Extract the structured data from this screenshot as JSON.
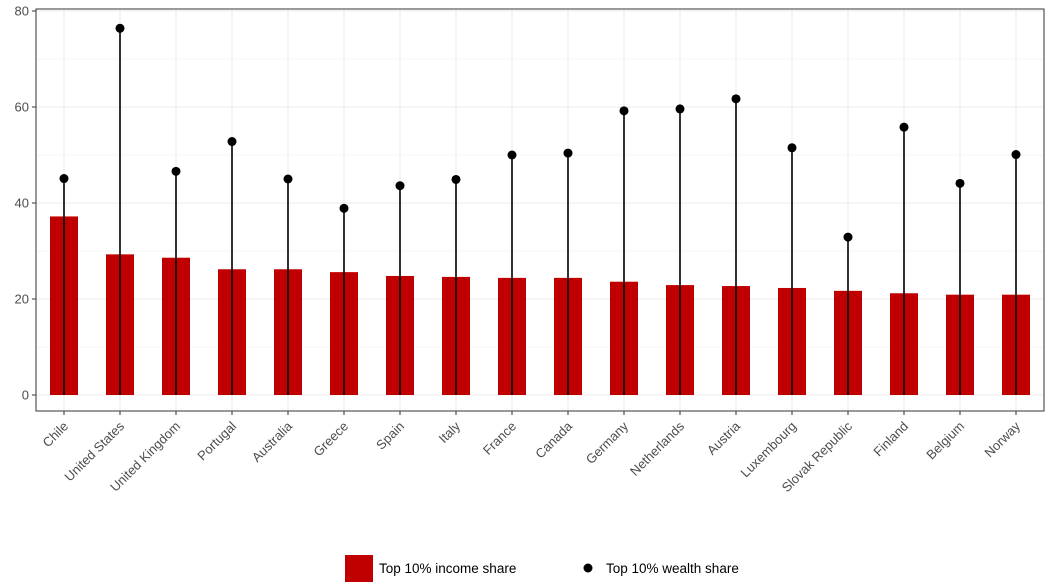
{
  "chart_data": {
    "type": "bar",
    "categories": [
      "Chile",
      "United States",
      "United Kingdom",
      "Portugal",
      "Australia",
      "Greece",
      "Spain",
      "Italy",
      "France",
      "Canada",
      "Germany",
      "Netherlands",
      "Austria",
      "Luxembourg",
      "Slovak Republic",
      "Finland",
      "Belgium",
      "Norway"
    ],
    "series": [
      {
        "name": "Top 10% income share",
        "kind": "bar",
        "color": "#c00000",
        "values": [
          37.2,
          29.3,
          28.6,
          26.2,
          26.2,
          25.6,
          24.8,
          24.6,
          24.4,
          24.4,
          23.6,
          22.9,
          22.7,
          22.3,
          21.7,
          21.2,
          20.9,
          20.9
        ]
      },
      {
        "name": "Top 10% wealth share",
        "kind": "point",
        "color": "#000000",
        "values": [
          45.1,
          76.4,
          46.6,
          52.8,
          45.0,
          38.9,
          43.6,
          44.9,
          50.0,
          50.4,
          59.2,
          59.6,
          61.7,
          51.5,
          32.9,
          55.8,
          44.1,
          50.1
        ]
      }
    ],
    "title": "",
    "xlabel": "",
    "ylabel": "",
    "ylim": [
      -3,
      80
    ],
    "yticks": [
      0,
      20,
      40,
      60,
      80
    ],
    "grid": true,
    "legend_position": "bottom"
  }
}
